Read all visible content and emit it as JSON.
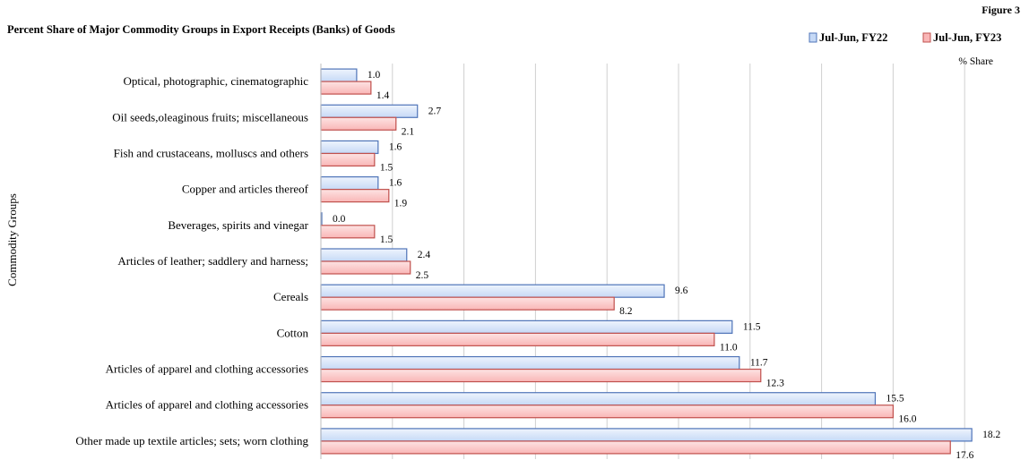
{
  "figure_label": "Figure 3",
  "unit_label": "% Share",
  "colors": {
    "series1_fill": "#c6d9f6",
    "series1_stroke": "#4f74b8",
    "series2_fill": "#f9b6b6",
    "series2_stroke": "#c0504d",
    "grid": "#d0d0d0"
  },
  "chart_data": {
    "type": "bar",
    "orientation": "horizontal",
    "title": "Percent Share of Major Commodity Groups in Export Receipts (Banks) of Goods",
    "ylabel": "Commodity Groups",
    "xlabel": "",
    "xlim": [
      0,
      18.5
    ],
    "grid": true,
    "legend_position": "top-right",
    "categories": [
      "Optical, photographic, cinematographic",
      "Oil seeds,oleaginous fruits; miscellaneous",
      "Fish and crustaceans, molluscs and others",
      "Copper and articles thereof",
      "Beverages, spirits and vinegar",
      "Articles of leather; saddlery and harness;",
      "Cereals",
      "Cotton",
      "Articles of apparel and clothing accessories",
      "Articles of apparel and clothing accessories",
      "Other made up textile articles; sets; worn clothing"
    ],
    "series": [
      {
        "name": "Jul-Jun, FY22",
        "values": [
          1.0,
          2.7,
          1.6,
          1.6,
          0.0,
          2.4,
          9.6,
          11.5,
          11.7,
          15.5,
          18.2
        ]
      },
      {
        "name": "Jul-Jun, FY23",
        "values": [
          1.4,
          2.1,
          1.5,
          1.9,
          1.5,
          2.5,
          8.2,
          11.0,
          12.3,
          16.0,
          17.6
        ]
      }
    ]
  }
}
